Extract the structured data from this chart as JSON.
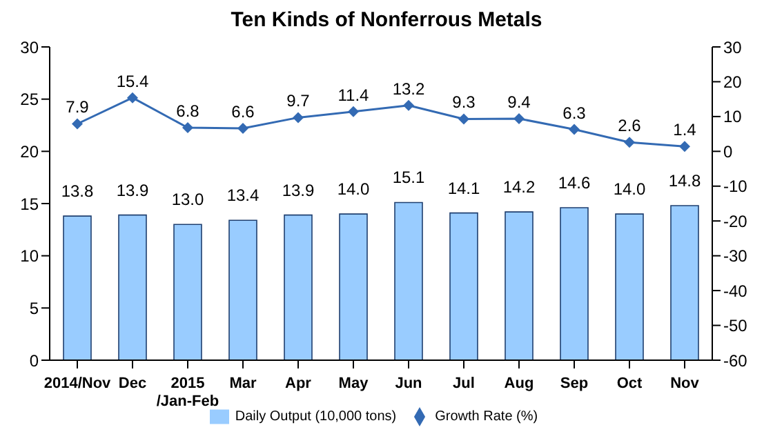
{
  "chart_data": {
    "type": "bar",
    "title": "Ten Kinds of Nonferrous Metals",
    "categories": [
      "2014/Nov",
      "Dec",
      "2015\n/Jan-Feb",
      "Mar",
      "Apr",
      "May",
      "Jun",
      "Jul",
      "Aug",
      "Sep",
      "Oct",
      "Nov"
    ],
    "series": [
      {
        "name": "Daily Output (10,000 tons)",
        "color": "#99ccff",
        "values": [
          13.8,
          13.9,
          13.0,
          13.4,
          13.9,
          14.0,
          15.1,
          14.1,
          14.2,
          14.6,
          14.0,
          14.8
        ],
        "value_labels": [
          "13.8",
          "13.9",
          "13.0",
          "13.4",
          "13.9",
          "14.0",
          "15.1",
          "14.1",
          "14.2",
          "14.6",
          "14.0",
          "14.8"
        ]
      },
      {
        "name": "Growth Rate (%)",
        "type": "line",
        "axis": "y2",
        "color": "#336ab3",
        "marker": "diamond",
        "values": [
          7.9,
          15.4,
          6.8,
          6.6,
          9.7,
          11.4,
          13.2,
          9.3,
          9.4,
          6.3,
          2.6,
          1.4
        ],
        "value_labels": [
          "7.9",
          "15.4",
          "6.8",
          "6.6",
          "9.7",
          "11.4",
          "13.2",
          "9.3",
          "9.4",
          "6.3",
          "2.6",
          "1.4"
        ]
      }
    ],
    "ylim": [
      0,
      30
    ],
    "yticks": [
      0,
      5,
      10,
      15,
      20,
      25,
      30
    ],
    "y2lim": [
      -60,
      30
    ],
    "y2ticks": [
      -60,
      -50,
      -40,
      -30,
      -20,
      -10,
      0,
      10,
      20,
      30
    ],
    "legend": "bottom"
  }
}
